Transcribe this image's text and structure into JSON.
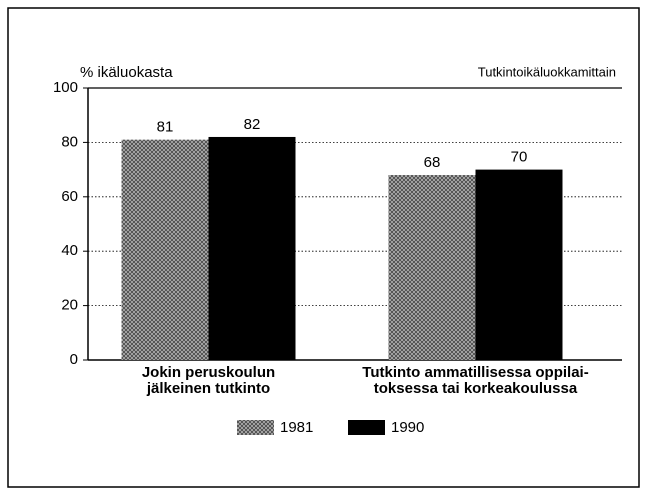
{
  "chart_data": {
    "type": "bar",
    "y_label": "% ikäluokasta",
    "annotation": "Tutkintoikäluokkamittain",
    "categories": [
      [
        "Jokin peruskoulun",
        "jälkeinen tutkinto"
      ],
      [
        "Tutkinto ammatillisessa oppilai-",
        "toksessa tai korkeakoulussa"
      ]
    ],
    "series": [
      {
        "name": "1981",
        "color": "#b4b4b4",
        "hatch": true,
        "values": [
          81,
          68
        ]
      },
      {
        "name": "1990",
        "color": "#000000",
        "hatch": false,
        "values": [
          82,
          70
        ]
      }
    ],
    "ylim": [
      0,
      100
    ],
    "yticks": [
      0,
      20,
      40,
      60,
      80,
      100
    ],
    "grid": true
  }
}
